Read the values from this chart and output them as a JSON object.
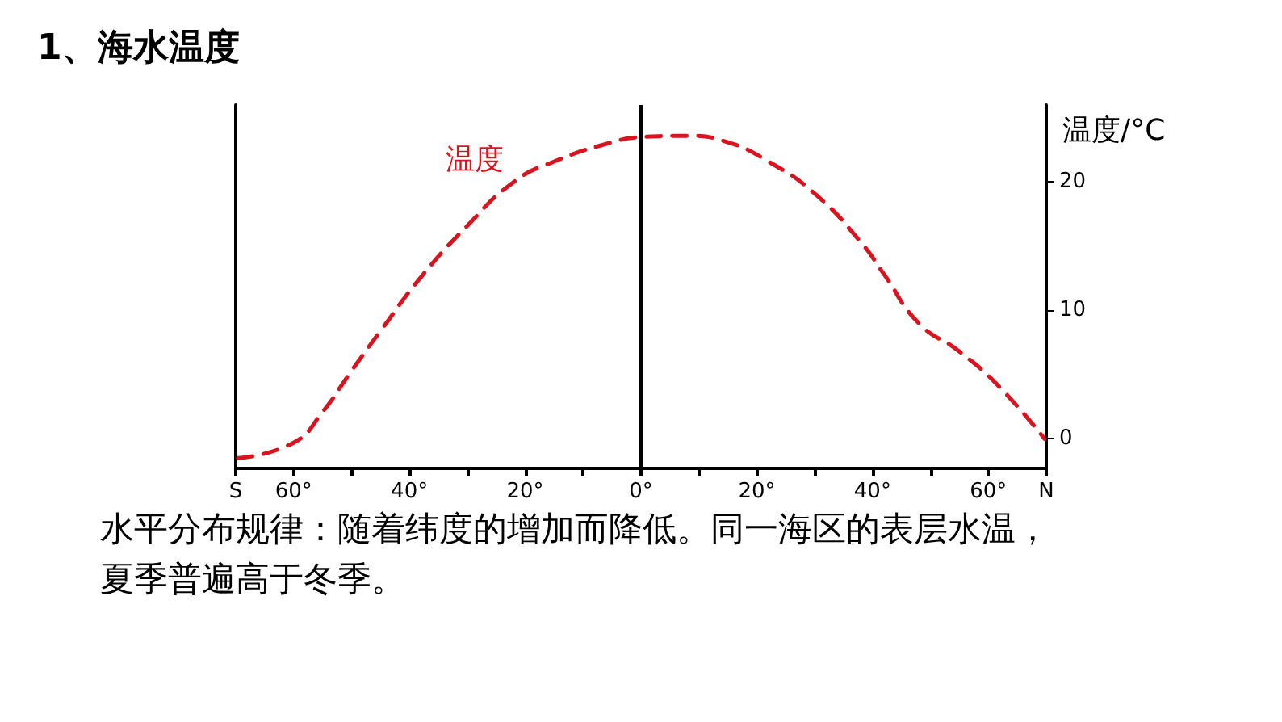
{
  "chart_data": {
    "type": "line",
    "title": "1、海水温度",
    "ylabel": "温度/°C",
    "annotations": [
      "温度",
      "水平分布规律：随着纬度的增加而降低。同一海区的表层水温，夏季普遍高于冬季。"
    ],
    "x": [
      -69.6,
      -60,
      -55,
      -50,
      -45,
      -38,
      -30,
      -22,
      -15,
      -5,
      0,
      8,
      15,
      22,
      30,
      38,
      42,
      48,
      55,
      62,
      69.7
    ],
    "series": [
      {
        "color": "#d9141e",
        "values": [
          -1.5,
          -0.3,
          2.1,
          5.3,
          8.4,
          12.6,
          16.6,
          20,
          21.6,
          23.1,
          23.5,
          23.6,
          23.1,
          21.6,
          19.1,
          15.3,
          12.8,
          9,
          6.8,
          4,
          0
        ]
      }
    ],
    "xlim": [
      -70,
      70
    ],
    "xticks": [
      {
        "value": -70,
        "label": "S"
      },
      {
        "value": -60,
        "label": "60°"
      },
      {
        "value": -50,
        "label": null
      },
      {
        "value": -40,
        "label": "40°"
      },
      {
        "value": -30,
        "label": null
      },
      {
        "value": -20,
        "label": "20°"
      },
      {
        "value": -10,
        "label": null
      },
      {
        "value": 0,
        "label": "0°"
      },
      {
        "value": 10,
        "label": null
      },
      {
        "value": 20,
        "label": "20°"
      },
      {
        "value": 30,
        "label": null
      },
      {
        "value": 40,
        "label": "40°"
      },
      {
        "value": 50,
        "label": null
      },
      {
        "value": 60,
        "label": "60°"
      },
      {
        "value": 70,
        "label": "N"
      }
    ],
    "ylim": [
      -2.3,
      26
    ],
    "yticks": [
      0,
      10,
      20
    ],
    "ref_lines": [
      {
        "axis": "x",
        "value": 0,
        "color": "#000000"
      }
    ],
    "line_style": "dashed",
    "marker": "none",
    "grid": false
  }
}
